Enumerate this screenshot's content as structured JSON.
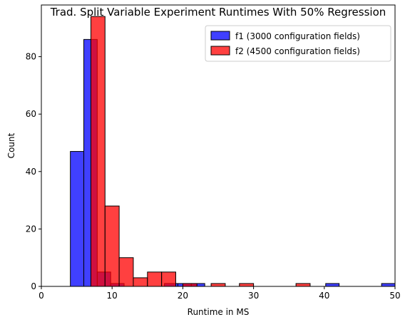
{
  "chart_data": {
    "type": "histogram",
    "title": "Trad. Split Variable Experiment Runtimes With 50% Regression",
    "xlabel": "Runtime in MS",
    "ylabel": "Count",
    "xlim": [
      0,
      50
    ],
    "ylim": [
      0,
      98
    ],
    "xticks": [
      0,
      10,
      20,
      30,
      40,
      50
    ],
    "yticks": [
      0,
      20,
      40,
      60,
      80
    ],
    "legend_position": "top-right",
    "series": [
      {
        "name": "f1 (3000 configuration fields)",
        "color": "#0000ff",
        "bins": [
          {
            "x0": 4.1,
            "x1": 6.0,
            "count": 47
          },
          {
            "x0": 6.0,
            "x1": 7.9,
            "count": 86
          },
          {
            "x0": 7.9,
            "x1": 9.8,
            "count": 5
          },
          {
            "x0": 9.8,
            "x1": 11.7,
            "count": 1
          },
          {
            "x0": 11.7,
            "x1": 13.6,
            "count": 0
          },
          {
            "x0": 13.6,
            "x1": 15.5,
            "count": 0
          },
          {
            "x0": 15.5,
            "x1": 17.4,
            "count": 0
          },
          {
            "x0": 17.4,
            "x1": 19.3,
            "count": 1
          },
          {
            "x0": 19.3,
            "x1": 21.2,
            "count": 1
          },
          {
            "x0": 21.2,
            "x1": 23.1,
            "count": 1
          },
          {
            "x0": 40.2,
            "x1": 42.1,
            "count": 1
          },
          {
            "x0": 48.1,
            "x1": 50.0,
            "count": 1
          }
        ]
      },
      {
        "name": "f2 (4500 configuration fields)",
        "color": "#ff0000",
        "bins": [
          {
            "x0": 7.0,
            "x1": 9.0,
            "count": 94
          },
          {
            "x0": 9.0,
            "x1": 11.0,
            "count": 28
          },
          {
            "x0": 11.0,
            "x1": 13.0,
            "count": 10
          },
          {
            "x0": 13.0,
            "x1": 15.0,
            "count": 3
          },
          {
            "x0": 15.0,
            "x1": 17.0,
            "count": 5
          },
          {
            "x0": 17.0,
            "x1": 19.0,
            "count": 5
          },
          {
            "x0": 20.0,
            "x1": 22.0,
            "count": 1
          },
          {
            "x0": 24.0,
            "x1": 26.0,
            "count": 1
          },
          {
            "x0": 28.0,
            "x1": 30.0,
            "count": 1
          },
          {
            "x0": 36.0,
            "x1": 38.0,
            "count": 1
          }
        ]
      }
    ]
  }
}
